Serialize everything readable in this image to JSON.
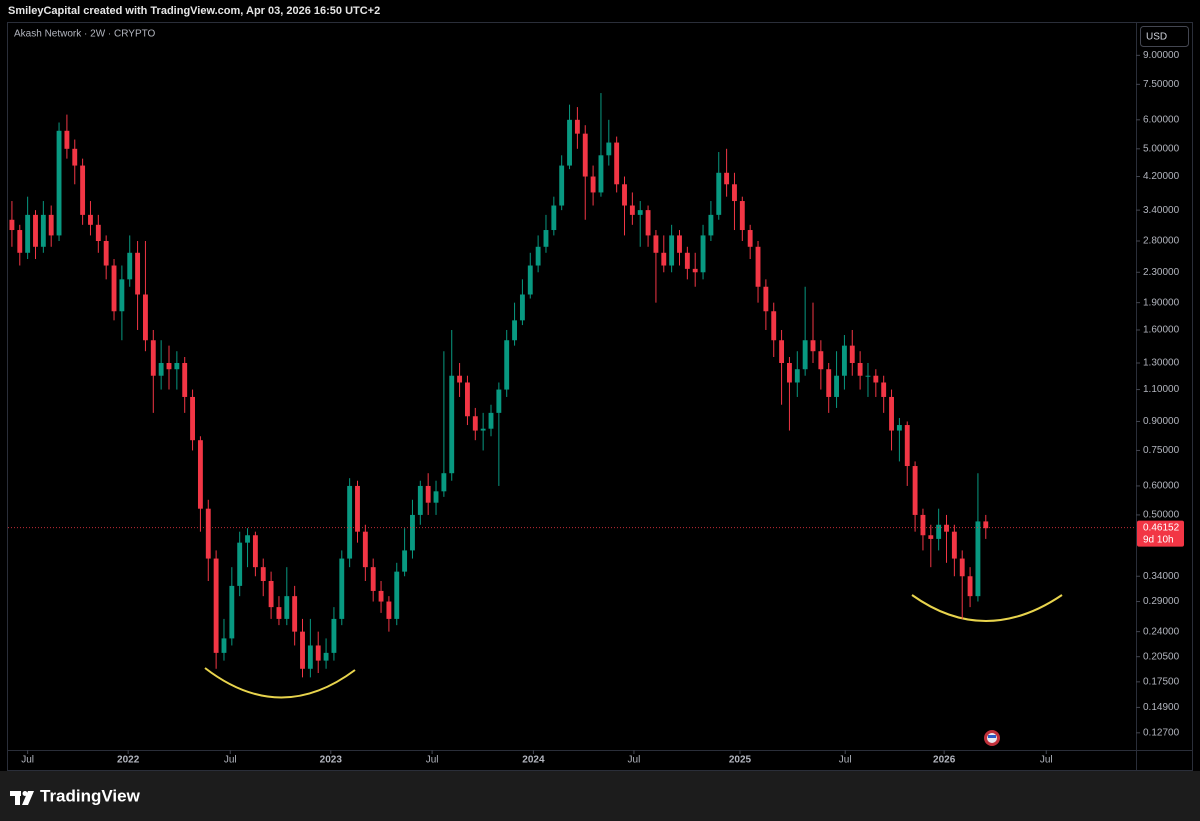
{
  "chart_data": {
    "type": "candlestick",
    "header": "SmileyCapital created with TradingView.com, Apr 03, 2026 16:50 UTC+2",
    "symbol": "Akash Network · 2W · CRYPTO",
    "currency": "USD",
    "brand": "TradingView",
    "log_scale": true,
    "grid": false,
    "up_color": "#089981",
    "down_color": "#f23645",
    "xlim": [
      -0.5,
      143
    ],
    "xticks": [
      {
        "value": 2,
        "label": "Jul"
      },
      {
        "value": 14.8,
        "label": "2022"
      },
      {
        "value": 27.8,
        "label": "Jul"
      },
      {
        "value": 40.6,
        "label": "2023"
      },
      {
        "value": 53.5,
        "label": "Jul"
      },
      {
        "value": 66.4,
        "label": "2024"
      },
      {
        "value": 79.2,
        "label": "Jul"
      },
      {
        "value": 92.7,
        "label": "2025"
      },
      {
        "value": 106.1,
        "label": "Jul"
      },
      {
        "value": 118.7,
        "label": "2026"
      },
      {
        "value": 131.7,
        "label": "Jul"
      }
    ],
    "ylim": [
      0.114,
      11.1
    ],
    "yticks": [
      {
        "value": 9,
        "label": "9.00000"
      },
      {
        "value": 7.5,
        "label": "7.50000"
      },
      {
        "value": 6,
        "label": "6.00000"
      },
      {
        "value": 5,
        "label": "5.00000"
      },
      {
        "value": 4.2,
        "label": "4.20000"
      },
      {
        "value": 3.4,
        "label": "3.40000"
      },
      {
        "value": 2.8,
        "label": "2.80000"
      },
      {
        "value": 2.3,
        "label": "2.30000"
      },
      {
        "value": 1.9,
        "label": "1.90000"
      },
      {
        "value": 1.6,
        "label": "1.60000"
      },
      {
        "value": 1.3,
        "label": "1.30000"
      },
      {
        "value": 1.1,
        "label": "1.10000"
      },
      {
        "value": 0.9,
        "label": "0.90000"
      },
      {
        "value": 0.75,
        "label": "0.75000"
      },
      {
        "value": 0.6,
        "label": "0.60000"
      },
      {
        "value": 0.5,
        "label": "0.50000"
      },
      {
        "value": 0.34,
        "label": "0.34000"
      },
      {
        "value": 0.29,
        "label": "0.29000"
      },
      {
        "value": 0.24,
        "label": "0.24000"
      },
      {
        "value": 0.205,
        "label": "0.20500"
      },
      {
        "value": 0.175,
        "label": "0.17500"
      },
      {
        "value": 0.149,
        "label": "0.14900"
      },
      {
        "value": 0.127,
        "label": "0.12700"
      }
    ],
    "last_price": 0.46152,
    "countdown": "9d 10h",
    "open": [
      3.2,
      3.0,
      2.6,
      3.3,
      2.7,
      3.3,
      2.9,
      5.6,
      5.0,
      4.5,
      3.3,
      3.1,
      2.8,
      2.4,
      1.8,
      2.2,
      2.6,
      2.0,
      1.5,
      1.2,
      1.3,
      1.25,
      1.3,
      1.05,
      0.8,
      0.52,
      0.38,
      0.21,
      0.23,
      0.32,
      0.42,
      0.44,
      0.36,
      0.33,
      0.28,
      0.26,
      0.3,
      0.24,
      0.19,
      0.22,
      0.2,
      0.21,
      0.26,
      0.38,
      0.6,
      0.45,
      0.36,
      0.31,
      0.29,
      0.26,
      0.35,
      0.4,
      0.5,
      0.6,
      0.54,
      0.58,
      0.65,
      1.2,
      1.15,
      0.93,
      0.85,
      0.86,
      0.95,
      1.1,
      1.5,
      1.7,
      2.0,
      2.4,
      2.7,
      3.0,
      3.5,
      4.5,
      6.0,
      5.5,
      4.2,
      3.8,
      4.8,
      5.2,
      4.0,
      3.5,
      3.3,
      3.4,
      2.9,
      2.6,
      2.4,
      2.9,
      2.6,
      2.35,
      2.3,
      2.9,
      3.3,
      4.3,
      4.0,
      3.6,
      3.0,
      2.7,
      2.1,
      1.8,
      1.5,
      1.3,
      1.15,
      1.25,
      1.5,
      1.4,
      1.25,
      1.05,
      1.2,
      1.45,
      1.3,
      1.2,
      1.2,
      1.15,
      1.05,
      0.85,
      0.88,
      0.68,
      0.5,
      0.44,
      0.43,
      0.47,
      0.45,
      0.38,
      0.34,
      0.3,
      0.48
    ],
    "high": [
      3.6,
      3.1,
      3.7,
      3.4,
      3.6,
      3.5,
      5.9,
      6.2,
      5.3,
      4.7,
      3.6,
      3.3,
      2.9,
      2.5,
      2.4,
      2.9,
      2.8,
      2.8,
      1.6,
      1.5,
      1.45,
      1.4,
      1.35,
      1.1,
      0.82,
      0.55,
      0.4,
      0.26,
      0.36,
      0.45,
      0.46,
      0.45,
      0.38,
      0.35,
      0.3,
      0.36,
      0.32,
      0.26,
      0.26,
      0.24,
      0.23,
      0.28,
      0.4,
      0.63,
      0.62,
      0.47,
      0.38,
      0.33,
      0.3,
      0.37,
      0.46,
      0.55,
      0.62,
      0.65,
      0.62,
      1.4,
      1.6,
      1.3,
      1.2,
      0.98,
      0.95,
      1.0,
      1.15,
      1.6,
      1.9,
      2.2,
      2.6,
      2.9,
      3.3,
      3.7,
      4.8,
      6.6,
      6.5,
      5.8,
      4.5,
      7.1,
      6.0,
      5.4,
      4.2,
      3.8,
      3.6,
      3.5,
      3.0,
      2.9,
      3.1,
      3.0,
      2.7,
      2.6,
      3.1,
      3.6,
      4.9,
      5.0,
      4.3,
      3.7,
      3.1,
      2.8,
      2.2,
      1.9,
      1.6,
      1.35,
      1.4,
      2.1,
      1.9,
      1.5,
      1.3,
      1.4,
      1.55,
      1.6,
      1.4,
      1.3,
      1.25,
      1.2,
      1.1,
      0.92,
      0.9,
      0.7,
      0.52,
      0.47,
      0.52,
      0.5,
      0.47,
      0.4,
      0.36,
      0.65,
      0.5
    ],
    "low": [
      2.7,
      2.4,
      2.5,
      2.5,
      2.6,
      2.7,
      2.8,
      4.7,
      4.0,
      3.1,
      2.9,
      2.6,
      2.2,
      1.7,
      1.5,
      2.1,
      1.6,
      1.4,
      0.95,
      1.1,
      1.1,
      1.1,
      0.95,
      0.75,
      0.45,
      0.33,
      0.19,
      0.2,
      0.22,
      0.3,
      0.36,
      0.34,
      0.3,
      0.26,
      0.25,
      0.25,
      0.22,
      0.18,
      0.18,
      0.185,
      0.19,
      0.2,
      0.25,
      0.36,
      0.42,
      0.33,
      0.29,
      0.27,
      0.24,
      0.25,
      0.34,
      0.38,
      0.47,
      0.5,
      0.5,
      0.56,
      0.62,
      1.05,
      0.88,
      0.8,
      0.75,
      0.82,
      0.6,
      1.05,
      1.45,
      1.65,
      1.95,
      2.3,
      2.6,
      2.9,
      3.4,
      4.4,
      5.0,
      3.2,
      3.5,
      3.7,
      4.5,
      3.8,
      2.9,
      3.1,
      2.7,
      2.7,
      1.9,
      2.3,
      2.3,
      2.4,
      2.2,
      2.1,
      2.2,
      2.8,
      3.2,
      3.7,
      3.0,
      2.8,
      2.5,
      1.9,
      1.6,
      1.35,
      1.0,
      0.85,
      1.05,
      1.2,
      1.3,
      1.1,
      0.95,
      0.98,
      1.1,
      1.2,
      1.1,
      1.05,
      1.05,
      0.95,
      0.75,
      0.7,
      0.6,
      0.45,
      0.4,
      0.36,
      0.4,
      0.37,
      0.34,
      0.26,
      0.28,
      0.29,
      0.43
    ],
    "close": [
      3.0,
      2.6,
      3.3,
      2.7,
      3.3,
      2.9,
      5.6,
      5.0,
      4.5,
      3.3,
      3.1,
      2.8,
      2.4,
      1.8,
      2.2,
      2.6,
      2.0,
      1.5,
      1.2,
      1.3,
      1.25,
      1.3,
      1.05,
      0.8,
      0.52,
      0.38,
      0.21,
      0.23,
      0.32,
      0.42,
      0.44,
      0.36,
      0.33,
      0.28,
      0.26,
      0.3,
      0.24,
      0.19,
      0.22,
      0.2,
      0.21,
      0.26,
      0.38,
      0.6,
      0.45,
      0.36,
      0.31,
      0.29,
      0.26,
      0.35,
      0.4,
      0.5,
      0.6,
      0.54,
      0.58,
      0.65,
      1.2,
      1.15,
      0.93,
      0.85,
      0.86,
      0.95,
      1.1,
      1.5,
      1.7,
      2.0,
      2.4,
      2.7,
      3.0,
      3.5,
      4.5,
      6.0,
      5.5,
      4.2,
      3.8,
      4.8,
      5.2,
      4.0,
      3.5,
      3.3,
      3.4,
      2.9,
      2.6,
      2.4,
      2.9,
      2.6,
      2.35,
      2.3,
      2.9,
      3.3,
      4.3,
      4.0,
      3.6,
      3.0,
      2.7,
      2.1,
      1.8,
      1.5,
      1.3,
      1.15,
      1.25,
      1.5,
      1.4,
      1.25,
      1.05,
      1.2,
      1.45,
      1.3,
      1.2,
      1.2,
      1.15,
      1.05,
      0.85,
      0.88,
      0.68,
      0.5,
      0.44,
      0.43,
      0.47,
      0.45,
      0.38,
      0.34,
      0.3,
      0.48,
      0.46
    ]
  }
}
